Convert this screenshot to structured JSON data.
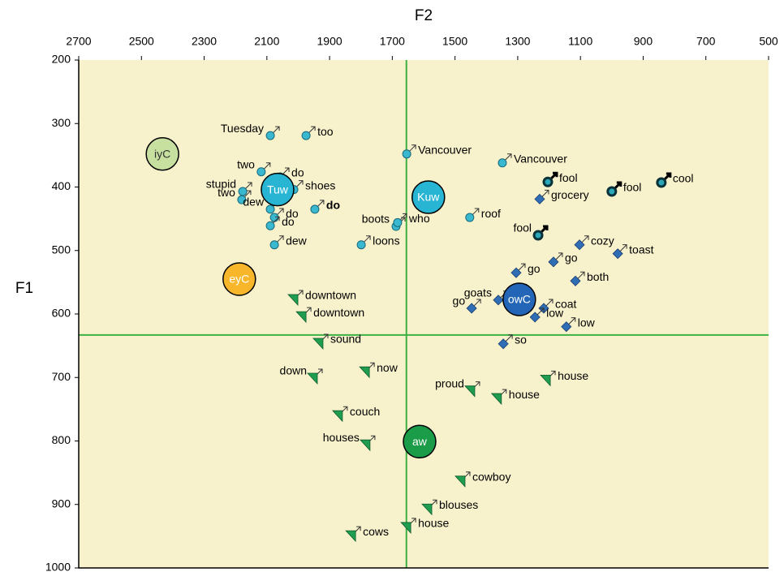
{
  "chart_data": {
    "type": "scatter",
    "xlabel": "F2",
    "ylabel": "F1",
    "xlim": [
      2700,
      500
    ],
    "ylim": [
      200,
      1000
    ],
    "xticks": [
      2700,
      2500,
      2300,
      2100,
      1900,
      1700,
      1500,
      1300,
      1100,
      900,
      700,
      500
    ],
    "yticks": [
      200,
      300,
      400,
      500,
      600,
      700,
      800,
      900,
      1000
    ],
    "reference_lines": {
      "x": 1655,
      "y": 633,
      "color": "#3cb043"
    },
    "background": "#f8f2cc",
    "series": [
      {
        "marker": "circle",
        "color": "#3ab8d0",
        "labels": [
          "Tuesday",
          "too",
          "two",
          "do",
          "stupid",
          "two",
          "shoes",
          "dew",
          "do",
          "do",
          "do",
          "dew",
          "boots",
          "who",
          "loons",
          "Vancouver",
          "Vancouver",
          "roof"
        ],
        "x": [
          2089,
          1975,
          2118,
          2058,
          2177,
          2180,
          2014,
          2089,
          2076,
          2089,
          1947,
          2076,
          1688,
          1683,
          1799,
          1654,
          1349,
          1453
        ],
        "values": [
          319,
          319,
          376,
          384,
          407,
          420,
          404,
          435,
          448,
          461,
          435,
          491,
          462,
          456,
          491,
          348,
          362,
          448
        ]
      },
      {
        "marker": "fool",
        "color": "#2aa7b8",
        "labels": [
          "fool",
          "fool",
          "cool",
          "fool"
        ],
        "x": [
          1204,
          1000,
          842,
          1235
        ],
        "values": [
          392,
          407,
          393,
          476
        ]
      },
      {
        "marker": "diamond",
        "color": "#2f6db5",
        "labels": [
          "grocery",
          "cozy",
          "toast",
          "go",
          "go",
          "both",
          "goats",
          "go",
          "coat",
          "low",
          "low",
          "so"
        ],
        "x": [
          1230,
          1103,
          981,
          1186,
          1305,
          1116,
          1362,
          1447,
          1217,
          1245,
          1145,
          1346
        ],
        "values": [
          419,
          491,
          505,
          518,
          535,
          548,
          578,
          591,
          591,
          605,
          620,
          647
        ]
      },
      {
        "marker": "triangle",
        "color": "#1f9e50",
        "labels": [
          "downtown",
          "downtown",
          "sound",
          "down",
          "now",
          "couch",
          "houses",
          "proud",
          "house",
          "house",
          "cowboy",
          "blouses",
          "house",
          "cows"
        ],
        "x": [
          2014,
          1988,
          1934,
          1952,
          1786,
          1872,
          1784,
          1450,
          1365,
          1209,
          1481,
          1587,
          1654,
          1830
        ],
        "values": [
          577,
          604,
          646,
          701,
          691,
          760,
          806,
          721,
          733,
          704,
          863,
          907,
          936,
          949
        ]
      },
      {
        "marker": "mean",
        "labels": [
          "iyC",
          "eyC",
          "Tuw",
          "Kuw",
          "owC",
          "aw"
        ],
        "colors": [
          "#c7e09f",
          "#f8b62a",
          "#27b5d3",
          "#27b5d3",
          "#2366b8",
          "#1a9c48"
        ],
        "x": [
          2433,
          2188,
          2066,
          1585,
          1295,
          1613
        ],
        "values": [
          348,
          545,
          404,
          416,
          577,
          801
        ]
      }
    ]
  }
}
